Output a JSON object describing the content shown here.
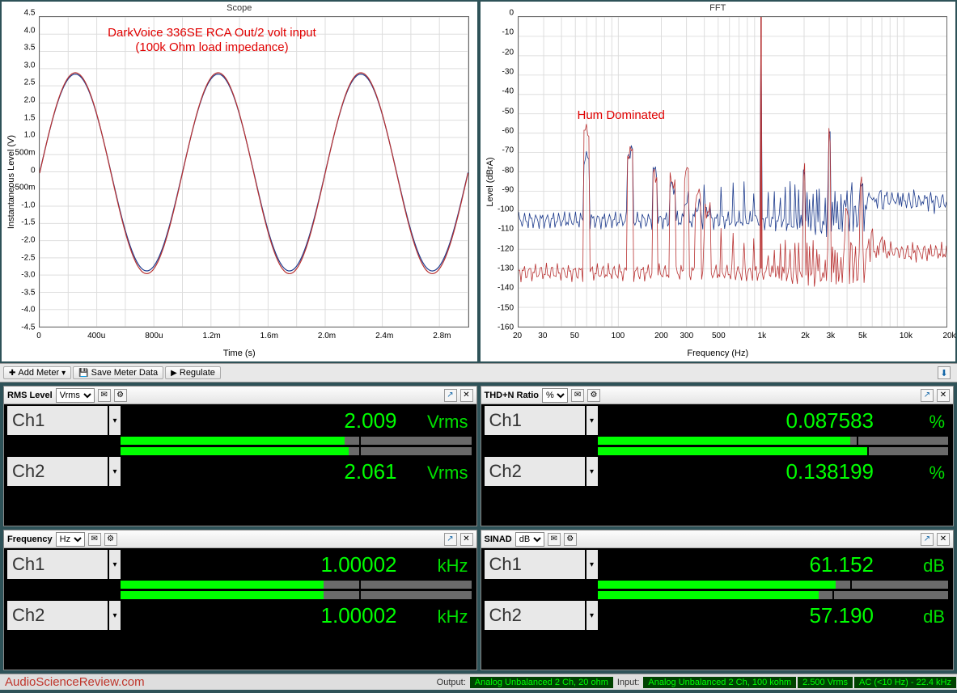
{
  "scope": {
    "title": "Scope",
    "ylabel": "Instantaneous Level (V)",
    "xlabel": "Time (s)",
    "annotation": "DarkVoice 336SE RCA Out/2 volt input\n(100k Ohm load impedance)",
    "xlim": [
      0,
      0.003
    ],
    "ylim": [
      -4.5,
      4.5
    ],
    "xticks": [
      "0",
      "400u",
      "800u",
      "1.2m",
      "1.6m",
      "2.0m",
      "2.4m",
      "2.8m"
    ],
    "yticks": [
      "-4.5",
      "-4.0",
      "-3.5",
      "-3.0",
      "-2.5",
      "-2.0",
      "-1.5",
      "-1.0",
      "-500m",
      "0",
      "500m",
      "1.0",
      "1.5",
      "2.0",
      "2.5",
      "3.0",
      "3.5",
      "4.0",
      "4.5"
    ],
    "grid_color": "#dddddd",
    "series": [
      {
        "color": "#1c3a8c",
        "amplitude": 2.86,
        "offset": -0.02
      },
      {
        "color": "#b83232",
        "amplitude": 2.92,
        "offset": -0.04
      }
    ]
  },
  "fft": {
    "title": "FFT",
    "ylabel": "Level (dBrA)",
    "xlabel": "Frequency (Hz)",
    "annotation": "Hum Dominated",
    "xlim": [
      20,
      20000
    ],
    "ylim": [
      -160,
      0
    ],
    "xticks": [
      "20",
      "30",
      "",
      "50",
      "",
      "",
      "100",
      "",
      "200",
      "300",
      "",
      "500",
      "",
      "",
      "1k",
      "",
      "2k",
      "3k",
      "",
      "5k",
      "",
      "",
      "10k",
      "",
      "20k"
    ],
    "yticks": [
      "-160",
      "-150",
      "-140",
      "-130",
      "-120",
      "-110",
      "-100",
      "-90",
      "-80",
      "-70",
      "-60",
      "-50",
      "-40",
      "-30",
      "-20",
      "-10",
      "0"
    ],
    "grid_color": "#dddddd",
    "series_colors": [
      "#1c3a8c",
      "#b83232"
    ],
    "noise_floor": [
      -105,
      -132
    ],
    "fundamental_hz": 1000,
    "hum_peaks_hz": [
      60,
      120,
      180,
      240,
      300,
      360,
      420
    ],
    "hum_levels_blue": [
      -73,
      -70,
      -80,
      -88,
      -95,
      -98,
      -100
    ],
    "hum_levels_red": [
      -59,
      -70,
      -82,
      -85,
      -80,
      -92,
      -100
    ],
    "harmonic_levels": [
      -78,
      -62,
      -100,
      -85,
      -110,
      -112
    ]
  },
  "toolbar": {
    "add_meter": "Add Meter",
    "save_meter": "Save Meter Data",
    "regulate": "Regulate"
  },
  "meters": [
    {
      "title": "RMS Level",
      "unit_select": "Vrms",
      "ch1": {
        "label": "Ch1",
        "value": "2.009",
        "unit": "Vrms",
        "bar_pct": 64,
        "mark_pct": 68
      },
      "ch2": {
        "label": "Ch2",
        "value": "2.061",
        "unit": "Vrms",
        "bar_pct": 65,
        "mark_pct": 68
      }
    },
    {
      "title": "THD+N Ratio",
      "unit_select": "%",
      "ch1": {
        "label": "Ch1",
        "value": "0.087583",
        "unit": "%",
        "bar_pct": 72,
        "mark_pct": 74
      },
      "ch2": {
        "label": "Ch2",
        "value": "0.138199",
        "unit": "%",
        "bar_pct": 77,
        "mark_pct": 77
      }
    },
    {
      "title": "Frequency",
      "unit_select": "Hz",
      "ch1": {
        "label": "Ch1",
        "value": "1.00002",
        "unit": "kHz",
        "bar_pct": 58,
        "mark_pct": 68
      },
      "ch2": {
        "label": "Ch2",
        "value": "1.00002",
        "unit": "kHz",
        "bar_pct": 58,
        "mark_pct": 68
      }
    },
    {
      "title": "SINAD",
      "unit_select": "dB",
      "ch1": {
        "label": "Ch1",
        "value": "61.152",
        "unit": "dB",
        "bar_pct": 68,
        "mark_pct": 72
      },
      "ch2": {
        "label": "Ch2",
        "value": "57.190",
        "unit": "dB",
        "bar_pct": 63,
        "mark_pct": 67
      }
    }
  ],
  "statusbar": {
    "watermark": "AudioScienceReview.com",
    "output_label": "Output:",
    "output_val": "Analog Unbalanced 2 Ch, 20 ohm",
    "input_label": "Input:",
    "input_val": "Analog Unbalanced 2 Ch, 100 kohm",
    "level": "2.500 Vrms",
    "bw": "AC (<10 Hz) - 22.4 kHz"
  }
}
